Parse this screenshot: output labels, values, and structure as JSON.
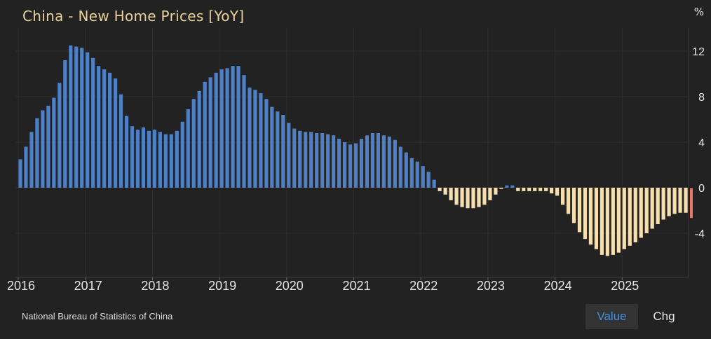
{
  "header": {
    "title": "China - New Home Prices [YoY]",
    "unit": "%"
  },
  "footer": {
    "source": "National Bureau of Statistics of China",
    "toggle_value": "Value",
    "toggle_chg": "Chg"
  },
  "colors": {
    "positive": "#4f7fc4",
    "negative": "#f5dfb0",
    "highlight": "#e8776a",
    "grid": "#2e2e2e",
    "axis_text": "#e6e6e6"
  },
  "chart_data": {
    "type": "bar",
    "title": "China - New Home Prices [YoY]",
    "ylabel": "%",
    "ylim": [
      -8,
      14
    ],
    "yticks": [
      12,
      8,
      4,
      0,
      -4
    ],
    "xticks": [
      "2016",
      "2017",
      "2018",
      "2019",
      "2020",
      "2021",
      "2022",
      "2023",
      "2024",
      "2025"
    ],
    "start": "2016-01",
    "legend": "none",
    "grid": true,
    "values": [
      2.5,
      3.6,
      4.9,
      6.1,
      6.8,
      7.2,
      7.9,
      9.2,
      11.2,
      12.5,
      12.4,
      12.3,
      11.9,
      11.4,
      10.7,
      10.4,
      10.1,
      9.6,
      8.2,
      6.3,
      5.4,
      5.1,
      5.3,
      5.0,
      5.1,
      4.9,
      4.7,
      4.7,
      5.0,
      5.8,
      6.9,
      7.8,
      8.5,
      9.3,
      9.7,
      10.1,
      10.4,
      10.5,
      10.7,
      10.7,
      9.9,
      8.8,
      8.6,
      8.3,
      7.8,
      7.1,
      6.7,
      6.4,
      5.7,
      5.2,
      5.0,
      4.9,
      4.9,
      4.8,
      4.8,
      4.7,
      4.6,
      4.3,
      4.0,
      3.8,
      3.9,
      4.3,
      4.6,
      4.8,
      4.8,
      4.6,
      4.5,
      4.2,
      3.6,
      3.1,
      2.6,
      2.3,
      1.9,
      1.4,
      0.7,
      -0.3,
      -0.6,
      -1.1,
      -1.5,
      -1.7,
      -1.8,
      -1.8,
      -1.7,
      -1.5,
      -1.1,
      -0.6,
      -0.1,
      0.2,
      0.2,
      -0.3,
      -0.3,
      -0.3,
      -0.3,
      -0.3,
      -0.3,
      -0.5,
      -0.7,
      -1.5,
      -2.3,
      -3.1,
      -3.9,
      -4.5,
      -5.0,
      -5.4,
      -5.9,
      -6.0,
      -5.9,
      -5.7,
      -5.4,
      -5.1,
      -4.8,
      -4.4,
      -4.0,
      -3.6,
      -3.2,
      -2.8,
      -2.5,
      -2.3,
      -2.2,
      -2.2,
      -2.7
    ]
  }
}
